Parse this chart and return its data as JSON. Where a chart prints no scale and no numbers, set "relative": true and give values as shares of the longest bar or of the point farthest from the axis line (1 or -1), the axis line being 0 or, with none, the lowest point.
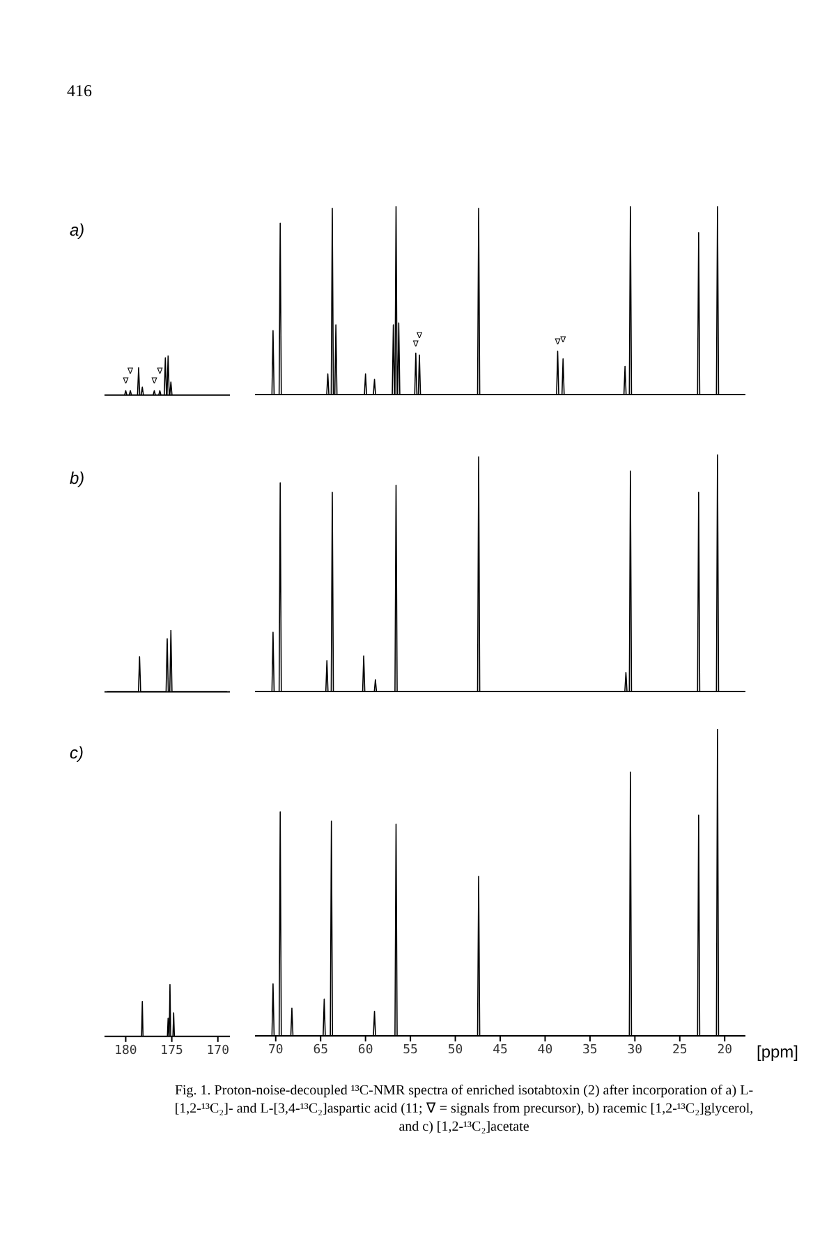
{
  "chart_data": [
    {
      "type": "line",
      "title": "a)",
      "relative": true,
      "xlim": [
        182,
        169
      ],
      "tick_labels": false,
      "annotations": [
        "416",
        {
          "text": "∇",
          "x": 180,
          "y": 0.11
        },
        {
          "text": "∇",
          "x": 179.5,
          "y": 0.11
        },
        {
          "text": "∇",
          "x": 176.9,
          "y": 0.11
        },
        {
          "text": "∇",
          "x": 176.3,
          "y": 0.11
        }
      ],
      "series": [
        {
          "color": "#000000",
          "x": [
            182,
            180.12,
            180,
            179.88,
            179.62,
            179.5,
            179.38,
            178.72,
            178.6,
            178.48,
            178.32,
            178.2,
            178.08,
            177.02,
            176.9,
            176.78,
            176.42,
            176.3,
            176.18,
            175.82,
            175.7,
            175.58,
            175.52,
            175.4,
            175.28,
            175.22,
            175.1,
            174.98,
            169
          ],
          "values": [
            0,
            0,
            0.11,
            0,
            0,
            0.11,
            0,
            0,
            0.69,
            0,
            0,
            0.2,
            0,
            0,
            0.11,
            0,
            0,
            0.11,
            0,
            0,
            0.94,
            0,
            0,
            1,
            0,
            0,
            0.33,
            0,
            0
          ]
        }
      ]
    },
    {
      "type": "line",
      "relative": true,
      "xlim": [
        72,
        18
      ],
      "tick_labels": false,
      "annotations": [
        {
          "text": "∇",
          "x": 54.4,
          "y": 0.22
        },
        {
          "text": "∇",
          "x": 54,
          "y": 0.21
        },
        {
          "text": "∇",
          "x": 38.6,
          "y": 0.23
        },
        {
          "text": "∇",
          "x": 38,
          "y": 0.19
        }
      ],
      "series": [
        {
          "color": "#000000",
          "x": [
            72,
            70.42,
            70.3,
            70.18,
            69.62,
            69.5,
            69.38,
            64.32,
            64.2,
            64.08,
            63.82,
            63.7,
            63.58,
            63.42,
            63.3,
            63.18,
            60.12,
            60,
            59.88,
            59.12,
            59,
            58.88,
            57.02,
            56.9,
            56.78,
            56.72,
            56.6,
            56.48,
            56.42,
            56.3,
            56.18,
            54.52,
            54.4,
            54.28,
            54.12,
            54,
            53.88,
            47.52,
            47.4,
            47.28,
            38.72,
            38.6,
            38.48,
            38.12,
            38,
            37.88,
            31.22,
            31.1,
            30.98,
            30.62,
            30.5,
            30.38,
            23.02,
            22.9,
            22.78,
            20.92,
            20.8,
            20.68,
            18
          ],
          "values": [
            0,
            0,
            0.34,
            0,
            0,
            0.91,
            0,
            0,
            0.11,
            0,
            0,
            0.99,
            0,
            0,
            0.37,
            0,
            0,
            0.11,
            0,
            0,
            0.08,
            0,
            0,
            0.37,
            0,
            0,
            1,
            0,
            0,
            0.38,
            0,
            0,
            0.22,
            0,
            0,
            0.21,
            0,
            0,
            0.99,
            0,
            0,
            0.23,
            0,
            0,
            0.19,
            0,
            0,
            0.15,
            0,
            0,
            1,
            0,
            0,
            0.86,
            0,
            0,
            1,
            0,
            0
          ]
        }
      ]
    },
    {
      "type": "line",
      "title": "b)",
      "relative": true,
      "xlim": [
        182,
        169
      ],
      "tick_labels": false,
      "series": [
        {
          "color": "#000000",
          "x": [
            182,
            178.62,
            178.5,
            178.38,
            175.62,
            175.5,
            175.38,
            175.22,
            175.1,
            174.98,
            169
          ],
          "values": [
            0,
            0,
            0.57,
            0,
            0,
            0.86,
            0,
            0,
            1,
            0,
            0
          ]
        }
      ]
    },
    {
      "type": "line",
      "relative": true,
      "xlim": [
        72,
        18
      ],
      "tick_labels": false,
      "series": [
        {
          "color": "#000000",
          "x": [
            72,
            70.42,
            70.3,
            70.18,
            69.62,
            69.5,
            69.38,
            64.42,
            64.3,
            64.18,
            63.82,
            63.7,
            63.58,
            60.32,
            60.2,
            60.08,
            59.02,
            58.9,
            58.78,
            56.72,
            56.6,
            56.48,
            47.52,
            47.4,
            47.28,
            31.12,
            31,
            30.88,
            30.62,
            30.5,
            30.38,
            23.02,
            22.9,
            22.78,
            20.92,
            20.8,
            20.68,
            18
          ],
          "values": [
            0,
            0,
            0.25,
            0,
            0,
            0.88,
            0,
            0,
            0.13,
            0,
            0,
            0.84,
            0,
            0,
            0.15,
            0,
            0,
            0.05,
            0,
            0,
            0.87,
            0,
            0,
            0.99,
            0,
            0,
            0.08,
            0,
            0,
            0.93,
            0,
            0,
            0.84,
            0,
            0,
            1,
            0,
            0
          ]
        }
      ]
    },
    {
      "type": "line",
      "title": "c)",
      "relative": true,
      "xlim": [
        182,
        169
      ],
      "xticks": [
        180,
        175,
        170
      ],
      "tick_labels": "x",
      "series": [
        {
          "color": "#000000",
          "x": [
            182,
            178.28,
            178.2,
            178.12,
            175.48,
            175.4,
            175.32,
            175.28,
            175.2,
            175.12,
            174.88,
            174.8,
            174.72,
            169
          ],
          "values": [
            0,
            0,
            0.67,
            0,
            0,
            0.35,
            0,
            0,
            1,
            0,
            0,
            0.45,
            0,
            0
          ]
        }
      ]
    },
    {
      "type": "line",
      "relative": true,
      "xlim": [
        72,
        18
      ],
      "xticks": [
        70,
        65,
        60,
        55,
        50,
        45,
        40,
        35,
        30,
        25,
        20
      ],
      "tick_labels": "x",
      "xlabel": "[ppm]",
      "annotations": [
        "Fig. 1. Proton-noise-decoupled ¹³C-NMR spectra of enriched isotabtoxin (2) after incorporation of a) L-[1,2-¹³C₂]- and L-[3,4-¹³C₂]aspartic acid (11; ∇ = signals from precursor), b) racemic [1,2-¹³C₂]glycerol, and c) [1,2-¹³C₂]acetate"
      ],
      "series": [
        {
          "color": "#000000",
          "x": [
            72,
            70.42,
            70.3,
            70.18,
            69.62,
            69.5,
            69.38,
            68.32,
            68.2,
            68.08,
            64.72,
            64.6,
            64.48,
            63.92,
            63.8,
            63.68,
            59.12,
            59,
            58.88,
            56.72,
            56.6,
            56.48,
            47.52,
            47.4,
            47.28,
            30.62,
            30.5,
            30.38,
            23.02,
            22.9,
            22.78,
            20.92,
            20.8,
            20.68,
            18
          ],
          "values": [
            0,
            0,
            0.17,
            0,
            0,
            0.73,
            0,
            0,
            0.09,
            0,
            0,
            0.12,
            0,
            0,
            0.7,
            0,
            0,
            0.08,
            0,
            0,
            0.69,
            0,
            0,
            0.52,
            0,
            0,
            0.86,
            0,
            0,
            0.72,
            0,
            0,
            1,
            0,
            0
          ]
        }
      ]
    }
  ]
}
